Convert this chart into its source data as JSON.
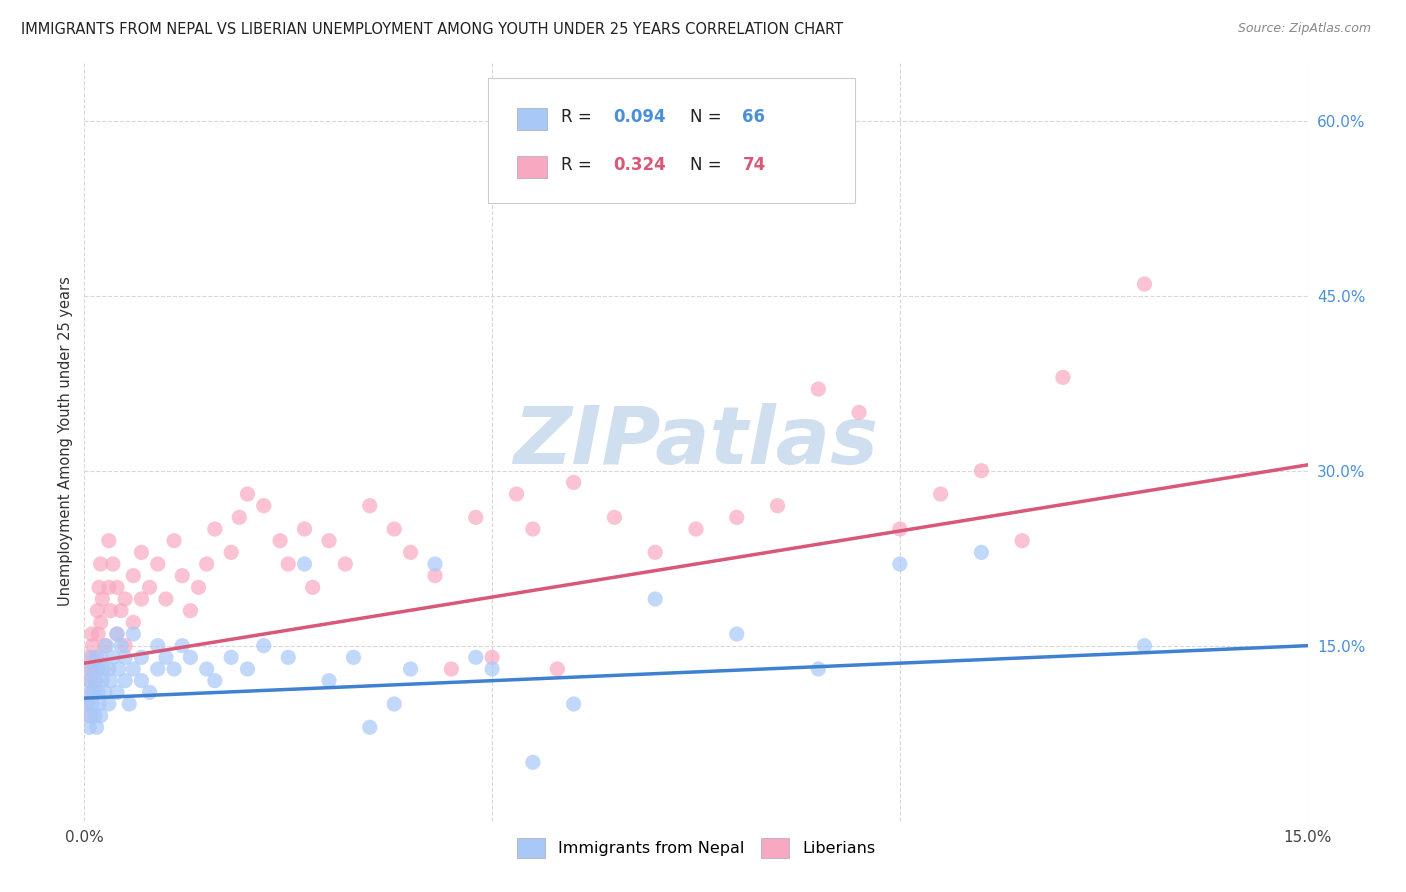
{
  "title": "IMMIGRANTS FROM NEPAL VS LIBERIAN UNEMPLOYMENT AMONG YOUTH UNDER 25 YEARS CORRELATION CHART",
  "source": "Source: ZipAtlas.com",
  "ylabel": "Unemployment Among Youth under 25 years",
  "y_ticks_right": [
    "60.0%",
    "45.0%",
    "30.0%",
    "15.0%"
  ],
  "y_ticks_right_vals": [
    0.6,
    0.45,
    0.3,
    0.15
  ],
  "xlim": [
    0.0,
    0.15
  ],
  "ylim": [
    0.0,
    0.65
  ],
  "nepal_color": "#A8C8F8",
  "liberia_color": "#F8A8C0",
  "nepal_line_color": "#4080D0",
  "liberia_line_color": "#D85878",
  "nepal_R": 0.094,
  "nepal_N": 66,
  "liberia_R": 0.324,
  "liberia_N": 74,
  "watermark_text": "ZIPatlas",
  "watermark_color": "#D0DFF0",
  "background_color": "#FFFFFF",
  "grid_color": "#D8D8D8",
  "nepal_scatter_x": [
    0.0003,
    0.0005,
    0.0006,
    0.0007,
    0.0008,
    0.0009,
    0.001,
    0.001,
    0.0012,
    0.0013,
    0.0014,
    0.0015,
    0.0016,
    0.0017,
    0.0018,
    0.002,
    0.002,
    0.0022,
    0.0023,
    0.0025,
    0.0027,
    0.003,
    0.003,
    0.0032,
    0.0035,
    0.004,
    0.004,
    0.0042,
    0.0045,
    0.005,
    0.005,
    0.0055,
    0.006,
    0.006,
    0.007,
    0.007,
    0.008,
    0.009,
    0.009,
    0.01,
    0.011,
    0.012,
    0.013,
    0.015,
    0.016,
    0.018,
    0.02,
    0.022,
    0.025,
    0.027,
    0.03,
    0.033,
    0.035,
    0.038,
    0.04,
    0.043,
    0.048,
    0.05,
    0.055,
    0.06,
    0.07,
    0.08,
    0.09,
    0.1,
    0.11,
    0.13
  ],
  "nepal_scatter_y": [
    0.1,
    0.12,
    0.08,
    0.09,
    0.11,
    0.13,
    0.1,
    0.14,
    0.11,
    0.09,
    0.12,
    0.08,
    0.13,
    0.11,
    0.1,
    0.14,
    0.09,
    0.12,
    0.13,
    0.11,
    0.15,
    0.1,
    0.13,
    0.12,
    0.14,
    0.11,
    0.16,
    0.13,
    0.15,
    0.12,
    0.14,
    0.1,
    0.13,
    0.16,
    0.12,
    0.14,
    0.11,
    0.13,
    0.15,
    0.14,
    0.13,
    0.15,
    0.14,
    0.13,
    0.12,
    0.14,
    0.13,
    0.15,
    0.14,
    0.22,
    0.12,
    0.14,
    0.08,
    0.1,
    0.13,
    0.22,
    0.14,
    0.13,
    0.05,
    0.1,
    0.19,
    0.16,
    0.13,
    0.22,
    0.23,
    0.15
  ],
  "liberia_scatter_x": [
    0.0003,
    0.0005,
    0.0006,
    0.0007,
    0.0008,
    0.0009,
    0.001,
    0.001,
    0.0012,
    0.0013,
    0.0015,
    0.0016,
    0.0017,
    0.0018,
    0.002,
    0.002,
    0.0022,
    0.0025,
    0.003,
    0.003,
    0.0032,
    0.0035,
    0.004,
    0.004,
    0.0045,
    0.005,
    0.005,
    0.006,
    0.006,
    0.007,
    0.007,
    0.008,
    0.009,
    0.01,
    0.011,
    0.012,
    0.013,
    0.014,
    0.015,
    0.016,
    0.018,
    0.019,
    0.02,
    0.022,
    0.024,
    0.025,
    0.027,
    0.028,
    0.03,
    0.032,
    0.035,
    0.038,
    0.04,
    0.043,
    0.045,
    0.048,
    0.05,
    0.053,
    0.055,
    0.058,
    0.06,
    0.065,
    0.07,
    0.075,
    0.08,
    0.085,
    0.09,
    0.095,
    0.1,
    0.105,
    0.11,
    0.115,
    0.12,
    0.13
  ],
  "liberia_scatter_y": [
    0.1,
    0.14,
    0.12,
    0.09,
    0.13,
    0.16,
    0.11,
    0.15,
    0.13,
    0.12,
    0.14,
    0.18,
    0.16,
    0.2,
    0.17,
    0.22,
    0.19,
    0.15,
    0.24,
    0.2,
    0.18,
    0.22,
    0.16,
    0.2,
    0.18,
    0.15,
    0.19,
    0.17,
    0.21,
    0.19,
    0.23,
    0.2,
    0.22,
    0.19,
    0.24,
    0.21,
    0.18,
    0.2,
    0.22,
    0.25,
    0.23,
    0.26,
    0.28,
    0.27,
    0.24,
    0.22,
    0.25,
    0.2,
    0.24,
    0.22,
    0.27,
    0.25,
    0.23,
    0.21,
    0.13,
    0.26,
    0.14,
    0.28,
    0.25,
    0.13,
    0.29,
    0.26,
    0.23,
    0.25,
    0.26,
    0.27,
    0.37,
    0.35,
    0.25,
    0.28,
    0.3,
    0.24,
    0.38,
    0.46
  ],
  "nepal_trend_x": [
    0.0,
    0.15
  ],
  "nepal_trend_y": [
    0.105,
    0.15
  ],
  "liberia_trend_x": [
    0.0,
    0.15
  ],
  "liberia_trend_y": [
    0.135,
    0.305
  ]
}
